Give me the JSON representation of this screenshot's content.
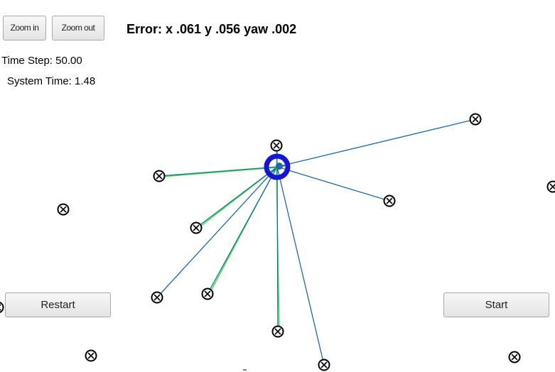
{
  "toolbar": {
    "zoom_in_label": "Zoom in",
    "zoom_out_label": "Zoom out"
  },
  "status": {
    "error_text": "Error: x .061 y .056 yaw .002",
    "time_step": "Time Step: 50.00",
    "system_time": "System Time: 1.48"
  },
  "controls": {
    "restart_label": "Restart",
    "start_label": "Start"
  },
  "colors": {
    "landmark": "#000000",
    "robot": "#1515d6",
    "observation_line": "#1f6aa8",
    "predicted_line": "#3dea3d"
  },
  "icons": {
    "landmark": "circled-x-icon",
    "robot": "robot-ring-icon"
  }
}
